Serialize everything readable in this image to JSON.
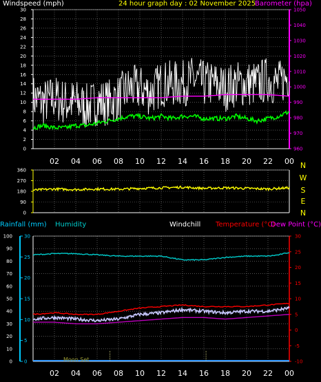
{
  "header": {
    "windspeed_label": "Windspeed (mph)",
    "title": "24 hour graph day : 02 November 2025",
    "barometer_label": "Barometer (hpa)"
  },
  "panel2": {
    "compass": [
      "N",
      "W",
      "S",
      "E",
      "N"
    ]
  },
  "panel3": {
    "rainfall_label": "Rainfall (mm)",
    "humidity_label": "Humidity",
    "windchill_label": "Windchill",
    "temperature_label": "Temperature (°C)",
    "dewpoint_label": "Dew Point (°C)",
    "moon_label": "Moon Set"
  },
  "colors": {
    "wind": "#ffffff",
    "barometer": "#ff00ff",
    "gust": "#00ff00",
    "direction": "#ffff00",
    "humidity": "#00cccc",
    "rain_axis": "#00ccff",
    "temperature": "#ff0000",
    "dewpoint": "#bb00bb",
    "windchill": "#ffffff",
    "grid": "#888888"
  },
  "chart_data": [
    {
      "type": "line",
      "x_tick_labels": [
        "02",
        "04",
        "06",
        "08",
        "10",
        "12",
        "14",
        "16",
        "18",
        "20",
        "22",
        "00"
      ],
      "y_left_ticks": [
        0,
        2,
        4,
        6,
        8,
        10,
        12,
        14,
        16,
        18,
        20,
        22,
        24,
        26,
        28,
        30
      ],
      "y_right_ticks": [
        960,
        970,
        980,
        990,
        1000,
        1010,
        1020,
        1030,
        1040,
        1050
      ],
      "ylim_left": [
        0,
        30
      ],
      "ylim_right": [
        960,
        1050
      ],
      "series": [
        {
          "axis": "left",
          "style": "noisy",
          "x": [
            0,
            1,
            2,
            3,
            4,
            5,
            6,
            7,
            8,
            9,
            10,
            11,
            12,
            13,
            14,
            15,
            16,
            17,
            18,
            19,
            20,
            21,
            22,
            23,
            24
          ],
          "values": [
            11,
            10,
            11,
            10,
            10,
            9,
            10,
            10,
            11,
            13,
            13,
            12,
            14,
            14,
            14,
            15,
            14,
            14,
            13,
            14,
            14,
            14,
            15,
            14,
            16
          ],
          "spread": 3.0
        },
        {
          "axis": "left",
          "style": "noisy",
          "x": [
            0,
            1,
            2,
            3,
            4,
            5,
            6,
            7,
            8,
            9,
            10,
            11,
            12,
            13,
            14,
            15,
            16,
            17,
            18,
            19,
            20,
            21,
            22,
            23,
            24
          ],
          "values": [
            4.5,
            5,
            4.5,
            4.5,
            5,
            5,
            5.5,
            6,
            6.5,
            7,
            7,
            6.5,
            7,
            6.5,
            7,
            7,
            6.5,
            6.5,
            6.5,
            7,
            6.5,
            6,
            6.5,
            7,
            8
          ],
          "spread": 0.5
        },
        {
          "axis": "right",
          "style": "smooth",
          "x": [
            0,
            2,
            4,
            6,
            8,
            10,
            12,
            14,
            16,
            18,
            20,
            22,
            24
          ],
          "values": [
            992,
            992,
            992,
            993,
            993,
            993,
            993,
            994,
            994,
            995,
            995,
            995,
            994
          ]
        }
      ]
    },
    {
      "type": "line",
      "y_ticks": [
        0,
        90,
        180,
        270,
        360
      ],
      "ylim": [
        0,
        360
      ],
      "series": [
        {
          "style": "noisy",
          "x": [
            0,
            2,
            4,
            6,
            8,
            10,
            12,
            14,
            16,
            18,
            20,
            22,
            24
          ],
          "values": [
            190,
            200,
            195,
            200,
            198,
            205,
            210,
            215,
            205,
            210,
            205,
            200,
            210
          ],
          "spread": 10
        }
      ]
    },
    {
      "type": "line",
      "x_tick_labels": [
        "02",
        "04",
        "06",
        "08",
        "10",
        "12",
        "14",
        "16",
        "18",
        "20",
        "22",
        "00"
      ],
      "y_rain_ticks": [
        0,
        5,
        10,
        15,
        20,
        25,
        30
      ],
      "ylim_rain": [
        0,
        30
      ],
      "y_humidity_ticks": [
        0,
        10,
        20,
        30,
        40,
        50,
        60,
        70,
        80,
        90,
        100
      ],
      "ylim_humidity": [
        0,
        100
      ],
      "y_temp_ticks": [
        -10,
        -5,
        0,
        5,
        10,
        15,
        20,
        25,
        30
      ],
      "ylim_temp": [
        -10,
        30
      ],
      "moon_set_x": 7.2,
      "moon_rise_x": 16.2,
      "series": [
        {
          "axis": "humidity",
          "style": "smooth",
          "x": [
            0,
            2,
            4,
            6,
            8,
            10,
            12,
            14,
            16,
            18,
            20,
            22,
            23,
            24
          ],
          "values": [
            85,
            86,
            86,
            85,
            84,
            84,
            84,
            81,
            81,
            83,
            84,
            84,
            85,
            87
          ]
        },
        {
          "axis": "temp",
          "style": "smooth",
          "x": [
            0,
            2,
            4,
            6,
            8,
            10,
            12,
            14,
            16,
            18,
            20,
            22,
            24
          ],
          "values": [
            5,
            5.5,
            5,
            5,
            6,
            7,
            7.5,
            8,
            7.5,
            7.5,
            7.5,
            8,
            8.5
          ]
        },
        {
          "axis": "temp",
          "style": "noisy",
          "x": [
            0,
            2,
            4,
            6,
            8,
            10,
            12,
            14,
            16,
            18,
            20,
            22,
            24
          ],
          "values": [
            3.5,
            4,
            3.5,
            3,
            3.5,
            5,
            5.5,
            6.5,
            6,
            5.5,
            6,
            6,
            7
          ],
          "spread": 0.5
        },
        {
          "axis": "temp",
          "style": "smooth",
          "x": [
            0,
            2,
            4,
            6,
            8,
            10,
            12,
            14,
            16,
            18,
            20,
            22,
            24
          ],
          "values": [
            2.5,
            2.5,
            2,
            2,
            2.5,
            3,
            3.5,
            4,
            4,
            3.5,
            4,
            4.5,
            5
          ]
        },
        {
          "axis": "rain",
          "style": "smooth",
          "x": [
            0,
            24
          ],
          "values": [
            0,
            0
          ]
        }
      ]
    }
  ]
}
